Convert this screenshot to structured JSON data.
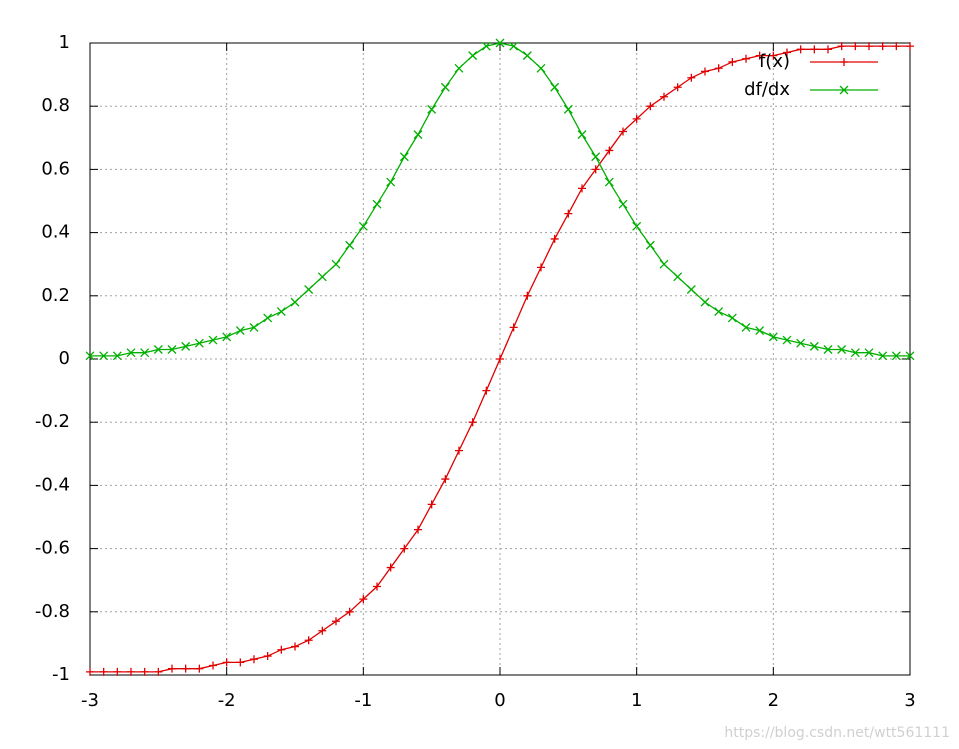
{
  "chart_data": {
    "type": "line",
    "x": [
      -3,
      -2.9,
      -2.8,
      -2.7,
      -2.6,
      -2.5,
      -2.4,
      -2.3,
      -2.2,
      -2.1,
      -2,
      -1.9,
      -1.8,
      -1.7,
      -1.6,
      -1.5,
      -1.4,
      -1.3,
      -1.2,
      -1.1,
      -1,
      -0.9,
      -0.8,
      -0.7,
      -0.6,
      -0.5,
      -0.4,
      -0.3,
      -0.2,
      -0.1,
      0,
      0.1,
      0.2,
      0.3,
      0.4,
      0.5,
      0.6,
      0.7,
      0.8,
      0.9,
      1,
      1.1,
      1.2,
      1.3,
      1.4,
      1.5,
      1.6,
      1.7,
      1.8,
      1.9,
      2,
      2.1,
      2.2,
      2.3,
      2.4,
      2.5,
      2.6,
      2.7,
      2.8,
      2.9,
      3
    ],
    "series": [
      {
        "name": "f(x)",
        "color": "#e00000",
        "marker": "+",
        "values": [
          -0.99,
          -0.99,
          -0.99,
          -0.99,
          -0.99,
          -0.99,
          -0.98,
          -0.98,
          -0.98,
          -0.97,
          -0.96,
          -0.96,
          -0.95,
          -0.94,
          -0.92,
          -0.91,
          -0.89,
          -0.86,
          -0.83,
          -0.8,
          -0.76,
          -0.72,
          -0.66,
          -0.6,
          -0.54,
          -0.46,
          -0.38,
          -0.29,
          -0.2,
          -0.1,
          0,
          0.1,
          0.2,
          0.29,
          0.38,
          0.46,
          0.54,
          0.6,
          0.66,
          0.72,
          0.76,
          0.8,
          0.83,
          0.86,
          0.89,
          0.91,
          0.92,
          0.94,
          0.95,
          0.96,
          0.96,
          0.97,
          0.98,
          0.98,
          0.98,
          0.99,
          0.99,
          0.99,
          0.99,
          0.99,
          0.99
        ]
      },
      {
        "name": "df/dx",
        "color": "#00b000",
        "marker": "x",
        "values": [
          0.01,
          0.01,
          0.01,
          0.02,
          0.02,
          0.03,
          0.03,
          0.04,
          0.05,
          0.06,
          0.07,
          0.09,
          0.1,
          0.13,
          0.15,
          0.18,
          0.22,
          0.26,
          0.3,
          0.36,
          0.42,
          0.49,
          0.56,
          0.64,
          0.71,
          0.79,
          0.86,
          0.92,
          0.96,
          0.99,
          1,
          0.99,
          0.96,
          0.92,
          0.86,
          0.79,
          0.71,
          0.64,
          0.56,
          0.49,
          0.42,
          0.36,
          0.3,
          0.26,
          0.22,
          0.18,
          0.15,
          0.13,
          0.1,
          0.09,
          0.07,
          0.06,
          0.05,
          0.04,
          0.03,
          0.03,
          0.02,
          0.02,
          0.01,
          0.01,
          0.01
        ]
      }
    ],
    "xlim": [
      -3,
      3
    ],
    "ylim": [
      -1,
      1
    ],
    "xticks": [
      -3,
      -2,
      -1,
      0,
      1,
      2,
      3
    ],
    "yticks": [
      -1,
      -0.8,
      -0.6,
      -0.4,
      -0.2,
      0,
      0.2,
      0.4,
      0.6,
      0.8,
      1
    ],
    "grid": true,
    "legend": "top-right",
    "watermark": "https://blog.csdn.net/wtt561111"
  }
}
